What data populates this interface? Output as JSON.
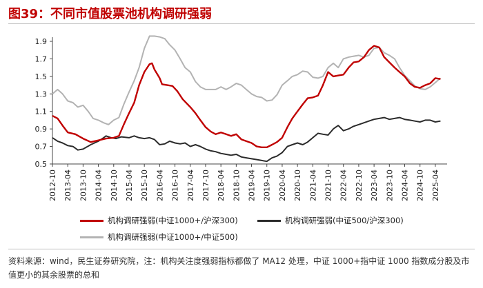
{
  "figure": {
    "title": "图39：不同市值股票池机构调研强弱",
    "note": "资料来源：wind，民生证券研究院，注：机构关注度强弱指标都做了 MA12 处理，中证 1000+指中证 1000 指数成分股及市值更小的其余股票的总和"
  },
  "colors": {
    "red": "#c00000",
    "black": "#2b2b2b",
    "gray": "#b3b3b3",
    "title": "#c00000"
  },
  "chart_data": {
    "type": "line",
    "title": "",
    "xlabel": "",
    "ylabel": "",
    "ylim": [
      0.5,
      1.9
    ],
    "yticks": [
      0.5,
      0.7,
      0.9,
      1.1,
      1.3,
      1.5,
      1.7,
      1.9
    ],
    "xrange": [
      2012.75,
      2025.5
    ],
    "xticks": [
      "2012-10",
      "2013-04",
      "2013-10",
      "2014-04",
      "2014-10",
      "2015-04",
      "2015-10",
      "2016-04",
      "2016-10",
      "2017-04",
      "2017-10",
      "2018-04",
      "2018-10",
      "2019-04",
      "2019-10",
      "2020-04",
      "2020-10",
      "2021-04",
      "2021-10",
      "2022-04",
      "2022-10",
      "2023-04",
      "2023-10",
      "2024-04",
      "2024-10",
      "2025-04"
    ],
    "legend_position": "bottom",
    "series": [
      {
        "name": "机构调研强弱(中证1000+/沪深300)",
        "color": "red",
        "points": [
          [
            2012.75,
            1.05
          ],
          [
            2012.92,
            1.02
          ],
          [
            2013.08,
            0.94
          ],
          [
            2013.25,
            0.86
          ],
          [
            2013.5,
            0.84
          ],
          [
            2013.75,
            0.79
          ],
          [
            2014.0,
            0.75
          ],
          [
            2014.25,
            0.77
          ],
          [
            2014.5,
            0.79
          ],
          [
            2014.75,
            0.8
          ],
          [
            2014.92,
            0.82
          ],
          [
            2015.08,
            0.95
          ],
          [
            2015.25,
            1.08
          ],
          [
            2015.42,
            1.2
          ],
          [
            2015.58,
            1.4
          ],
          [
            2015.75,
            1.55
          ],
          [
            2015.92,
            1.64
          ],
          [
            2016.0,
            1.65
          ],
          [
            2016.08,
            1.58
          ],
          [
            2016.25,
            1.48
          ],
          [
            2016.33,
            1.41
          ],
          [
            2016.5,
            1.4
          ],
          [
            2016.67,
            1.39
          ],
          [
            2016.83,
            1.33
          ],
          [
            2017.0,
            1.24
          ],
          [
            2017.25,
            1.15
          ],
          [
            2017.42,
            1.08
          ],
          [
            2017.58,
            1.0
          ],
          [
            2017.75,
            0.92
          ],
          [
            2017.92,
            0.87
          ],
          [
            2018.08,
            0.84
          ],
          [
            2018.25,
            0.86
          ],
          [
            2018.42,
            0.84
          ],
          [
            2018.58,
            0.82
          ],
          [
            2018.75,
            0.84
          ],
          [
            2018.92,
            0.78
          ],
          [
            2019.08,
            0.76
          ],
          [
            2019.25,
            0.74
          ],
          [
            2019.42,
            0.7
          ],
          [
            2019.58,
            0.69
          ],
          [
            2019.75,
            0.69
          ],
          [
            2019.92,
            0.72
          ],
          [
            2020.08,
            0.75
          ],
          [
            2020.25,
            0.8
          ],
          [
            2020.42,
            0.92
          ],
          [
            2020.58,
            1.02
          ],
          [
            2020.75,
            1.1
          ],
          [
            2020.92,
            1.18
          ],
          [
            2021.08,
            1.25
          ],
          [
            2021.25,
            1.26
          ],
          [
            2021.42,
            1.28
          ],
          [
            2021.58,
            1.4
          ],
          [
            2021.75,
            1.55
          ],
          [
            2021.92,
            1.5
          ],
          [
            2022.08,
            1.51
          ],
          [
            2022.25,
            1.52
          ],
          [
            2022.42,
            1.6
          ],
          [
            2022.58,
            1.66
          ],
          [
            2022.75,
            1.67
          ],
          [
            2022.92,
            1.72
          ],
          [
            2023.08,
            1.8
          ],
          [
            2023.25,
            1.85
          ],
          [
            2023.42,
            1.83
          ],
          [
            2023.58,
            1.72
          ],
          [
            2023.75,
            1.66
          ],
          [
            2023.92,
            1.6
          ],
          [
            2024.08,
            1.55
          ],
          [
            2024.25,
            1.5
          ],
          [
            2024.42,
            1.42
          ],
          [
            2024.58,
            1.38
          ],
          [
            2024.75,
            1.37
          ],
          [
            2024.92,
            1.4
          ],
          [
            2025.08,
            1.42
          ],
          [
            2025.25,
            1.48
          ],
          [
            2025.42,
            1.47
          ]
        ]
      },
      {
        "name": "机构调研强弱(中证500/沪深300)",
        "color": "black",
        "points": [
          [
            2012.75,
            0.8
          ],
          [
            2012.92,
            0.76
          ],
          [
            2013.08,
            0.74
          ],
          [
            2013.25,
            0.71
          ],
          [
            2013.42,
            0.7
          ],
          [
            2013.58,
            0.66
          ],
          [
            2013.75,
            0.67
          ],
          [
            2014.0,
            0.72
          ],
          [
            2014.25,
            0.76
          ],
          [
            2014.42,
            0.8
          ],
          [
            2014.5,
            0.82
          ],
          [
            2014.67,
            0.8
          ],
          [
            2014.83,
            0.79
          ],
          [
            2015.0,
            0.81
          ],
          [
            2015.25,
            0.8
          ],
          [
            2015.42,
            0.82
          ],
          [
            2015.58,
            0.8
          ],
          [
            2015.75,
            0.79
          ],
          [
            2015.92,
            0.8
          ],
          [
            2016.08,
            0.78
          ],
          [
            2016.25,
            0.72
          ],
          [
            2016.42,
            0.73
          ],
          [
            2016.58,
            0.76
          ],
          [
            2016.75,
            0.74
          ],
          [
            2016.92,
            0.73
          ],
          [
            2017.08,
            0.74
          ],
          [
            2017.25,
            0.7
          ],
          [
            2017.42,
            0.72
          ],
          [
            2017.58,
            0.7
          ],
          [
            2017.75,
            0.67
          ],
          [
            2017.92,
            0.65
          ],
          [
            2018.08,
            0.64
          ],
          [
            2018.25,
            0.62
          ],
          [
            2018.42,
            0.61
          ],
          [
            2018.58,
            0.6
          ],
          [
            2018.75,
            0.61
          ],
          [
            2018.92,
            0.58
          ],
          [
            2019.08,
            0.57
          ],
          [
            2019.25,
            0.56
          ],
          [
            2019.42,
            0.55
          ],
          [
            2019.58,
            0.54
          ],
          [
            2019.75,
            0.53
          ],
          [
            2019.92,
            0.57
          ],
          [
            2020.08,
            0.59
          ],
          [
            2020.25,
            0.63
          ],
          [
            2020.42,
            0.7
          ],
          [
            2020.58,
            0.72
          ],
          [
            2020.75,
            0.74
          ],
          [
            2020.92,
            0.72
          ],
          [
            2021.08,
            0.75
          ],
          [
            2021.25,
            0.8
          ],
          [
            2021.42,
            0.85
          ],
          [
            2021.58,
            0.84
          ],
          [
            2021.75,
            0.83
          ],
          [
            2021.92,
            0.9
          ],
          [
            2022.08,
            0.94
          ],
          [
            2022.25,
            0.88
          ],
          [
            2022.42,
            0.9
          ],
          [
            2022.58,
            0.93
          ],
          [
            2022.75,
            0.95
          ],
          [
            2022.92,
            0.97
          ],
          [
            2023.08,
            0.99
          ],
          [
            2023.25,
            1.01
          ],
          [
            2023.42,
            1.02
          ],
          [
            2023.58,
            1.03
          ],
          [
            2023.75,
            1.01
          ],
          [
            2023.92,
            1.02
          ],
          [
            2024.08,
            1.03
          ],
          [
            2024.25,
            1.01
          ],
          [
            2024.42,
            1.0
          ],
          [
            2024.58,
            0.99
          ],
          [
            2024.75,
            0.98
          ],
          [
            2024.92,
            1.0
          ],
          [
            2025.08,
            1.0
          ],
          [
            2025.25,
            0.98
          ],
          [
            2025.42,
            0.99
          ]
        ]
      },
      {
        "name": "机构调研强弱(中证1000+/中证500)",
        "color": "gray",
        "points": [
          [
            2012.75,
            1.3
          ],
          [
            2012.92,
            1.35
          ],
          [
            2013.08,
            1.3
          ],
          [
            2013.25,
            1.22
          ],
          [
            2013.42,
            1.2
          ],
          [
            2013.58,
            1.15
          ],
          [
            2013.75,
            1.17
          ],
          [
            2013.92,
            1.1
          ],
          [
            2014.08,
            1.02
          ],
          [
            2014.25,
            1.0
          ],
          [
            2014.42,
            0.97
          ],
          [
            2014.58,
            0.95
          ],
          [
            2014.75,
            1.0
          ],
          [
            2014.92,
            1.03
          ],
          [
            2015.08,
            1.18
          ],
          [
            2015.25,
            1.32
          ],
          [
            2015.42,
            1.45
          ],
          [
            2015.58,
            1.6
          ],
          [
            2015.75,
            1.82
          ],
          [
            2015.92,
            1.96
          ],
          [
            2016.08,
            1.96
          ],
          [
            2016.25,
            1.95
          ],
          [
            2016.42,
            1.93
          ],
          [
            2016.58,
            1.86
          ],
          [
            2016.75,
            1.8
          ],
          [
            2016.92,
            1.7
          ],
          [
            2017.08,
            1.6
          ],
          [
            2017.25,
            1.55
          ],
          [
            2017.42,
            1.44
          ],
          [
            2017.58,
            1.38
          ],
          [
            2017.75,
            1.35
          ],
          [
            2017.92,
            1.35
          ],
          [
            2018.08,
            1.35
          ],
          [
            2018.25,
            1.38
          ],
          [
            2018.42,
            1.35
          ],
          [
            2018.58,
            1.38
          ],
          [
            2018.75,
            1.42
          ],
          [
            2018.92,
            1.4
          ],
          [
            2019.08,
            1.35
          ],
          [
            2019.25,
            1.3
          ],
          [
            2019.42,
            1.27
          ],
          [
            2019.58,
            1.26
          ],
          [
            2019.75,
            1.22
          ],
          [
            2019.92,
            1.23
          ],
          [
            2020.08,
            1.29
          ],
          [
            2020.25,
            1.4
          ],
          [
            2020.42,
            1.45
          ],
          [
            2020.58,
            1.5
          ],
          [
            2020.75,
            1.52
          ],
          [
            2020.92,
            1.56
          ],
          [
            2021.08,
            1.55
          ],
          [
            2021.25,
            1.49
          ],
          [
            2021.42,
            1.48
          ],
          [
            2021.58,
            1.5
          ],
          [
            2021.75,
            1.6
          ],
          [
            2021.92,
            1.65
          ],
          [
            2022.08,
            1.6
          ],
          [
            2022.25,
            1.7
          ],
          [
            2022.42,
            1.72
          ],
          [
            2022.58,
            1.73
          ],
          [
            2022.75,
            1.74
          ],
          [
            2022.92,
            1.72
          ],
          [
            2023.08,
            1.74
          ],
          [
            2023.25,
            1.82
          ],
          [
            2023.42,
            1.83
          ],
          [
            2023.58,
            1.77
          ],
          [
            2023.75,
            1.74
          ],
          [
            2023.92,
            1.7
          ],
          [
            2024.08,
            1.6
          ],
          [
            2024.25,
            1.51
          ],
          [
            2024.42,
            1.45
          ],
          [
            2024.58,
            1.39
          ],
          [
            2024.75,
            1.36
          ],
          [
            2024.92,
            1.35
          ],
          [
            2025.08,
            1.38
          ],
          [
            2025.25,
            1.43
          ],
          [
            2025.42,
            1.48
          ]
        ]
      }
    ]
  }
}
